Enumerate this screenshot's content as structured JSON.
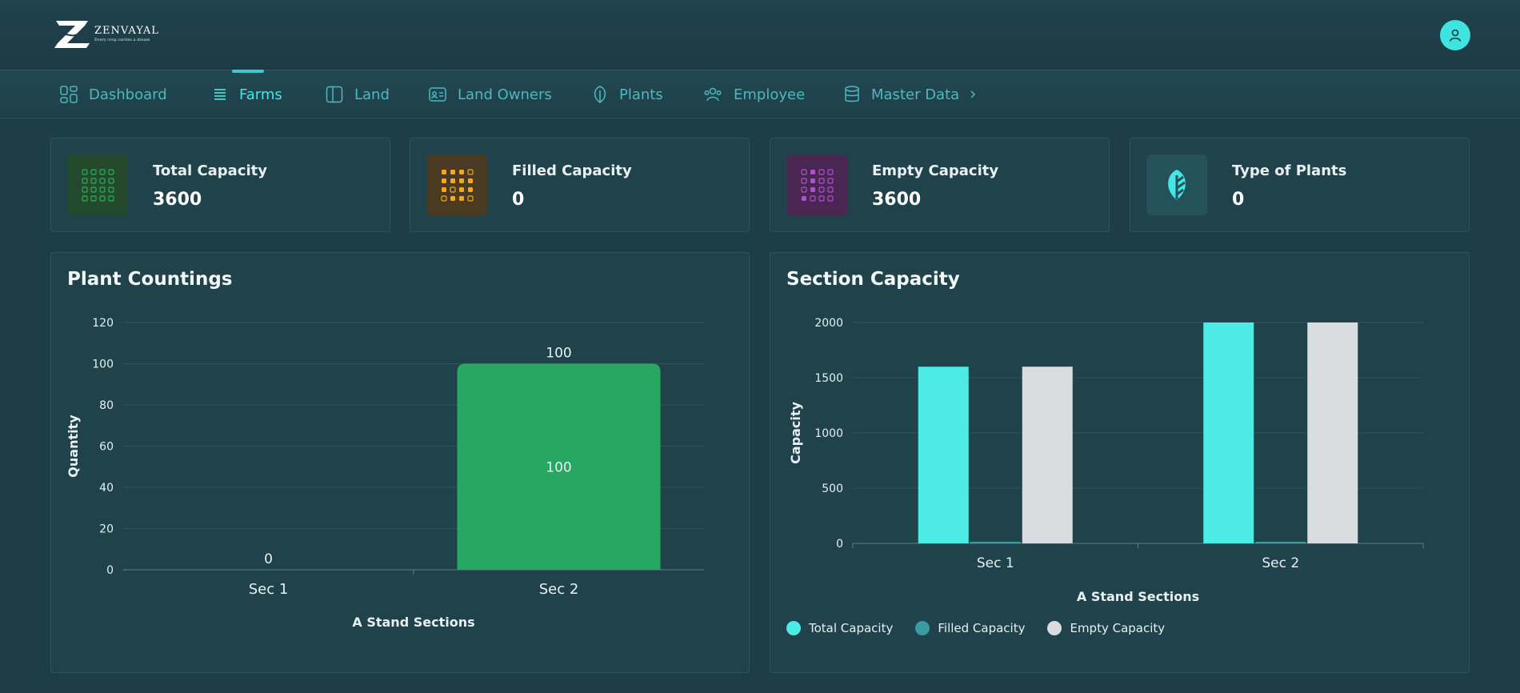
{
  "brand": {
    "name": "ZENVAYAL",
    "tagline": "Every crop carries a dream"
  },
  "nav": [
    {
      "label": "Dashboard",
      "icon": "dashboard-icon"
    },
    {
      "label": "Farms",
      "icon": "list-icon",
      "active": true
    },
    {
      "label": "Land",
      "icon": "land-icon"
    },
    {
      "label": "Land Owners",
      "icon": "id-card-icon"
    },
    {
      "label": "Plants",
      "icon": "leaf-icon"
    },
    {
      "label": "Employee",
      "icon": "users-icon"
    },
    {
      "label": "Master Data",
      "icon": "database-icon"
    }
  ],
  "stats": [
    {
      "title": "Total Capacity",
      "value": "3600",
      "icon": "grid-icon",
      "color": "#2bb05a"
    },
    {
      "title": "Filled Capacity",
      "value": "0",
      "icon": "grid-filled-icon",
      "color": "#f5a623"
    },
    {
      "title": "Empty Capacity",
      "value": "3600",
      "icon": "grid-partial-icon",
      "color": "#b04fd0"
    },
    {
      "title": "Type of Plants",
      "value": "0",
      "icon": "leaf-icon",
      "color": "#43e6e3"
    }
  ],
  "panels": {
    "plant_countings": {
      "title": "Plant Countings"
    },
    "section_capacity": {
      "title": "Section Capacity"
    }
  },
  "chart_data": [
    {
      "type": "bar",
      "title": "Plant Countings",
      "xlabel": "A Stand Sections",
      "ylabel": "Quantity",
      "categories": [
        "Sec 1",
        "Sec 2"
      ],
      "values": [
        0,
        100
      ],
      "data_labels": [
        "0",
        "100"
      ],
      "ylim": [
        0,
        120
      ],
      "yticks": [
        0,
        20,
        40,
        60,
        80,
        100,
        120
      ],
      "color": "#27a862",
      "grid": true
    },
    {
      "type": "bar",
      "title": "Section Capacity",
      "xlabel": "A Stand Sections",
      "ylabel": "Capacity",
      "categories": [
        "Sec 1",
        "Sec 2"
      ],
      "series": [
        {
          "name": "Total Capacity",
          "values": [
            1600,
            2000
          ],
          "color": "#4deae6"
        },
        {
          "name": "Filled Capacity",
          "values": [
            0,
            0
          ],
          "color": "#3a9ba0"
        },
        {
          "name": "Empty Capacity",
          "values": [
            1600,
            2000
          ],
          "color": "#dadde0"
        }
      ],
      "ylim": [
        0,
        2000
      ],
      "yticks": [
        0,
        500,
        1000,
        1500,
        2000
      ],
      "legend": "bottom-left",
      "grid": true
    }
  ]
}
